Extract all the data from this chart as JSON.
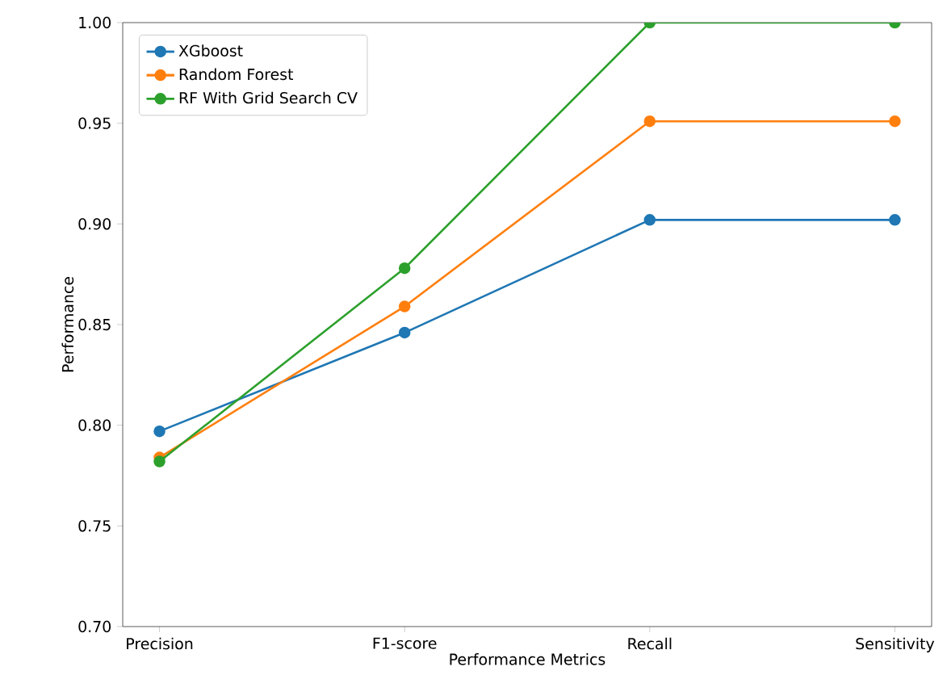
{
  "chart_data": {
    "type": "line",
    "xlabel": "Performance Metrics",
    "ylabel": "Performance",
    "categories": [
      "Precision",
      "F1-score",
      "Recall",
      "Sensitivity"
    ],
    "series": [
      {
        "name": "XGboost",
        "color": "#1f77b4",
        "values": [
          0.797,
          0.846,
          0.902,
          0.902
        ]
      },
      {
        "name": "Random Forest",
        "color": "#ff7f0e",
        "values": [
          0.784,
          0.859,
          0.951,
          0.951
        ]
      },
      {
        "name": "RF With Grid Search CV",
        "color": "#2ca02c",
        "values": [
          0.782,
          0.878,
          1.0,
          1.0
        ]
      }
    ],
    "ylim": [
      0.7,
      1.0
    ],
    "yticks": [
      {
        "value": 0.7,
        "label": "0.70"
      },
      {
        "value": 0.75,
        "label": "0.75"
      },
      {
        "value": 0.8,
        "label": "0.80"
      },
      {
        "value": 0.85,
        "label": "0.85"
      },
      {
        "value": 0.9,
        "label": "0.90"
      },
      {
        "value": 0.95,
        "label": "0.95"
      },
      {
        "value": 1.0,
        "label": "1.00"
      }
    ],
    "legend": "top left",
    "marker": "circle",
    "line_style": "solid",
    "grid": false
  }
}
